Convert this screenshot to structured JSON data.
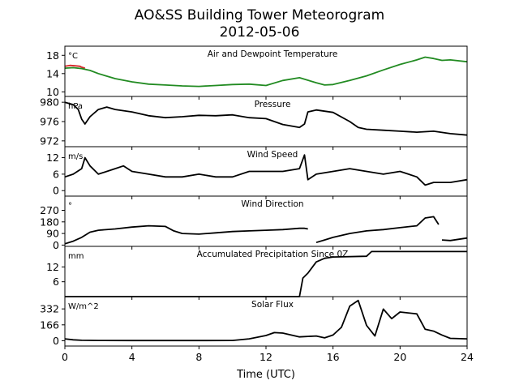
{
  "title_line1": "AO&SS Building Tower Meteorogram",
  "title_line2": "2012-05-06",
  "xlabel": "Time (UTC)",
  "colors": {
    "temperature": "#d62728",
    "dewpoint": "#228b22",
    "series": "#000000"
  },
  "chart_data": [
    {
      "type": "line",
      "title": "Air and Dewpoint Temperature",
      "unit": "°C",
      "xlim": [
        0,
        24
      ],
      "ylim": [
        9,
        20
      ],
      "yticks": [
        10,
        14,
        18
      ],
      "series": [
        {
          "color": "#d62728",
          "x": [
            0,
            0.3,
            0.6,
            0.9,
            1.0,
            1.2
          ],
          "y": [
            15.6,
            15.8,
            15.7,
            15.6,
            15.4,
            15.2
          ]
        },
        {
          "color": "#228b22",
          "x": [
            0,
            0.5,
            1,
            1.5,
            2,
            3,
            4,
            5,
            6,
            7,
            8,
            9,
            10,
            11,
            12,
            13,
            14,
            15,
            15.5,
            16,
            17,
            18,
            19,
            20,
            21,
            21.5,
            22,
            22.5,
            23,
            24
          ],
          "y": [
            15.2,
            15.3,
            15.1,
            14.7,
            14.0,
            12.9,
            12.2,
            11.7,
            11.5,
            11.3,
            11.2,
            11.4,
            11.6,
            11.7,
            11.4,
            12.5,
            13.1,
            12.0,
            11.5,
            11.6,
            12.5,
            13.5,
            14.8,
            16.0,
            17.0,
            17.6,
            17.3,
            16.9,
            17.0,
            16.6
          ]
        }
      ]
    },
    {
      "type": "line",
      "title": "Pressure",
      "unit": "hPa",
      "xlim": [
        0,
        24
      ],
      "ylim": [
        970.8,
        981.2
      ],
      "yticks": [
        972,
        976,
        980
      ],
      "series": [
        {
          "color": "#000000",
          "x": [
            0,
            0.5,
            0.8,
            1.0,
            1.2,
            1.5,
            2.0,
            2.5,
            3,
            4,
            5,
            6,
            7,
            8,
            9,
            10,
            11,
            12,
            13,
            14,
            14.3,
            14.5,
            15,
            16,
            17,
            17.5,
            18,
            19,
            20,
            21,
            22,
            23,
            24
          ],
          "y": [
            980.0,
            979.5,
            978.5,
            976.5,
            975.5,
            977.0,
            978.5,
            979.0,
            978.5,
            978.0,
            977.2,
            976.8,
            977.0,
            977.3,
            977.2,
            977.4,
            976.8,
            976.6,
            975.4,
            974.8,
            975.5,
            978.0,
            978.4,
            977.9,
            976.0,
            974.8,
            974.4,
            974.2,
            974.0,
            973.8,
            974.0,
            973.5,
            973.2
          ]
        }
      ]
    },
    {
      "type": "line",
      "title": "Wind Speed",
      "unit": "m/s",
      "xlim": [
        0,
        24
      ],
      "ylim": [
        -2,
        16
      ],
      "yticks": [
        0,
        6,
        12
      ],
      "series": [
        {
          "color": "#000000",
          "x": [
            0,
            0.5,
            1.0,
            1.2,
            1.5,
            2,
            3,
            3.5,
            4,
            5,
            6,
            7,
            8,
            9,
            10,
            11,
            12,
            13,
            14,
            14.3,
            14.5,
            15,
            16,
            17,
            18,
            19,
            20,
            20.5,
            21,
            21.5,
            22,
            23,
            24
          ],
          "y": [
            5,
            6,
            8,
            12,
            9,
            6,
            8,
            9,
            7,
            6,
            5,
            5,
            6,
            5,
            5,
            7,
            7,
            7,
            8,
            13,
            4,
            6,
            7,
            8,
            7,
            6,
            7,
            6,
            5,
            2,
            3,
            3,
            4
          ]
        }
      ]
    },
    {
      "type": "line",
      "title": "Wind Direction",
      "unit": "°",
      "xlim": [
        0,
        24
      ],
      "ylim": [
        -10,
        380
      ],
      "yticks": [
        0,
        90,
        180,
        270
      ],
      "series": [
        {
          "color": "#000000",
          "x": [
            0,
            0.5,
            1,
            1.5,
            2,
            3,
            4,
            5,
            6,
            6.5,
            7,
            8,
            9,
            10,
            11,
            12,
            13,
            14,
            14.3,
            14.5
          ],
          "y": [
            10,
            30,
            60,
            100,
            115,
            125,
            140,
            150,
            145,
            110,
            90,
            85,
            95,
            105,
            110,
            115,
            120,
            130,
            130,
            125
          ]
        },
        {
          "color": "#000000",
          "x": [
            15,
            15.5,
            16,
            17,
            18,
            19,
            20,
            21,
            21.5,
            22,
            22.3
          ],
          "y": [
            20,
            40,
            60,
            90,
            110,
            120,
            135,
            150,
            210,
            220,
            160
          ]
        },
        {
          "color": "#000000",
          "x": [
            22.5,
            23,
            24
          ],
          "y": [
            40,
            35,
            55
          ]
        }
      ]
    },
    {
      "type": "line",
      "title": "Accumulated Precipitation Since 0Z",
      "unit": "mm",
      "xlim": [
        0,
        24
      ],
      "ylim": [
        0,
        20.3
      ],
      "yticks": [
        6,
        12
      ],
      "series": [
        {
          "color": "#000000",
          "x": [
            0,
            14.0,
            14.2,
            14.5,
            15.0,
            15.5,
            16.0,
            18.0,
            18.3,
            24
          ],
          "y": [
            0,
            0,
            7.5,
            9.5,
            14.0,
            15.5,
            16.0,
            16.3,
            18.2,
            18.2
          ]
        }
      ]
    },
    {
      "type": "line",
      "title": "Solar Flux",
      "unit": "W/m^2",
      "xlim": [
        0,
        24
      ],
      "ylim": [
        -55,
        460
      ],
      "yticks": [
        0,
        166,
        332
      ],
      "series": [
        {
          "color": "#000000",
          "x": [
            0,
            0.5,
            1,
            2,
            4,
            6,
            8,
            10,
            11,
            12,
            12.5,
            13,
            14,
            15,
            15.5,
            16,
            16.5,
            17,
            17.5,
            18,
            18.5,
            19,
            19.5,
            20,
            21,
            21.5,
            22,
            22.5,
            23,
            24
          ],
          "y": [
            20,
            10,
            5,
            3,
            2,
            2,
            2,
            3,
            20,
            55,
            85,
            80,
            40,
            50,
            30,
            60,
            140,
            360,
            420,
            160,
            50,
            330,
            230,
            300,
            280,
            120,
            100,
            60,
            25,
            20
          ]
        }
      ]
    }
  ],
  "xticks": [
    0,
    4,
    8,
    12,
    16,
    20,
    24
  ]
}
